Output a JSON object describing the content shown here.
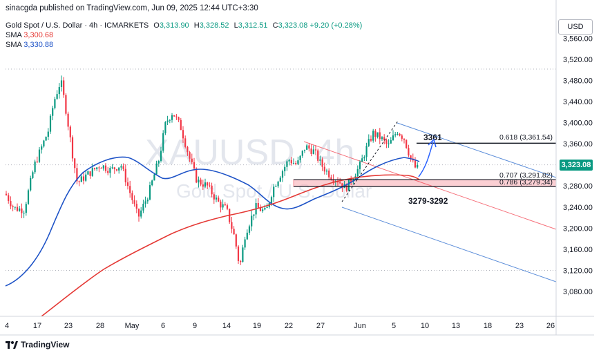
{
  "publisher": "sinacgda published on TradingView.com, Jun 09, 2025 12:44 UTC+3:30",
  "symbol": {
    "name": "Gold Spot / U.S. Dollar · 4h · ICMARKETS",
    "o_label": "O",
    "o": "3,313.90",
    "h_label": "H",
    "h": "3,328.52",
    "l_label": "L",
    "l": "3,312.51",
    "c_label": "C",
    "c": "3,323.08",
    "change": "+9.20 (+0.28%)"
  },
  "indicators": [
    {
      "label": "SMA",
      "value": "3,300.68",
      "color": "#e53935"
    },
    {
      "label": "SMA",
      "value": "3,330.88",
      "color": "#1e53c7"
    }
  ],
  "currency": "USD",
  "watermark": {
    "symbol": "XAUUSD, 4h",
    "name": "Gold Spot / U.S. Dollar"
  },
  "last_price": "3,323.08",
  "footer": {
    "brand": "TradingView"
  },
  "colors": {
    "up": "#089981",
    "down": "#f23645",
    "sma_fast": "#e53935",
    "sma_slow": "#1e53c7",
    "channel": "#5b8dd9"
  },
  "chart_data": {
    "type": "candlestick",
    "timeframe": "4h",
    "x_ticks": [
      "4",
      "17",
      "23",
      "28",
      "May",
      "6",
      "9",
      "14",
      "19",
      "22",
      "27",
      "Jun",
      "5",
      "10",
      "13",
      "18",
      "23",
      "26"
    ],
    "y_ticks": [
      "3,560.00",
      "3,520.00",
      "3,480.00",
      "3,440.00",
      "3,400.00",
      "3,360.00",
      "3,320.00",
      "3,280.00",
      "3,240.00",
      "3,200.00",
      "3,160.00",
      "3,120.00",
      "3,080.00"
    ],
    "ylim": [
      3050,
      3575
    ],
    "annotations": [
      {
        "text": "3361",
        "price": 3361
      },
      {
        "text": "3279-3292"
      },
      {
        "text": "0.618 (3,361.54)",
        "price": 3361.54
      },
      {
        "text": "0.707 (3,291.82)",
        "price": 3291.82
      },
      {
        "text": "0.786 (3,279.34)",
        "price": 3279.34
      }
    ],
    "zone": {
      "from": 3279,
      "to": 3292
    },
    "last_price": 3323.08
  }
}
